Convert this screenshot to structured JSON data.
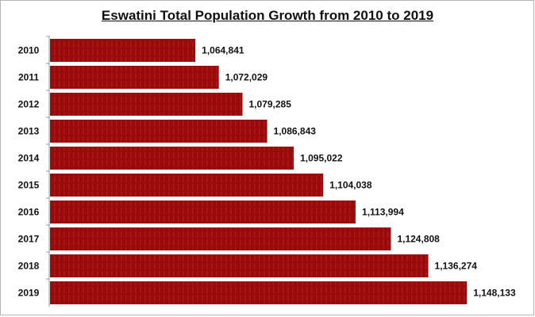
{
  "chart_data": {
    "type": "bar",
    "orientation": "horizontal",
    "title": "Eswatini Total Population Growth from 2010 to 2019",
    "xlabel": "",
    "ylabel": "",
    "categories": [
      "2010",
      "2011",
      "2012",
      "2013",
      "2014",
      "2015",
      "2016",
      "2017",
      "2018",
      "2019"
    ],
    "values": [
      1064841,
      1072029,
      1079285,
      1086843,
      1095022,
      1104038,
      1113994,
      1124808,
      1136274,
      1148133
    ],
    "data_labels": [
      "1,064,841",
      "1,072,029",
      "1,079,285",
      "1,086,843",
      "1,095,022",
      "1,104,038",
      "1,113,994",
      "1,124,808",
      "1,136,274",
      "1,148,133"
    ],
    "xlim": [
      1020000,
      1160000
    ],
    "grid": false,
    "bar_color": "#9b0a0a"
  }
}
